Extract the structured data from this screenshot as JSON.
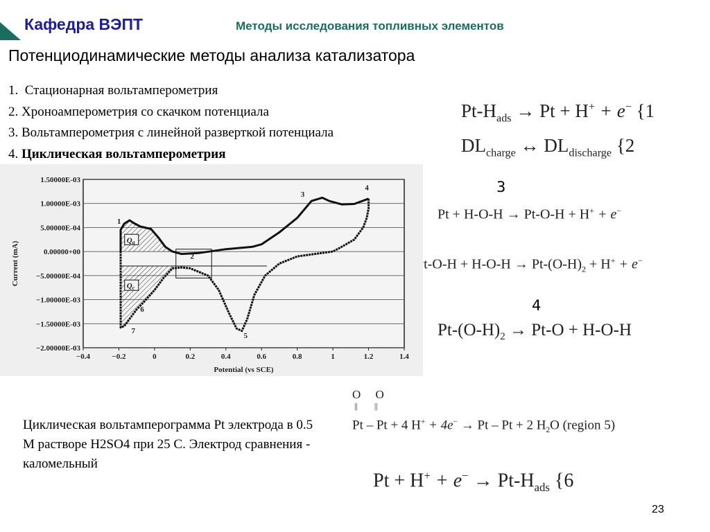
{
  "header": {
    "department": "Кафедра ВЭПТ",
    "course": "Методы исследования топливных элементов",
    "logo_color": "#1a6e60"
  },
  "slide": {
    "title": "Потенциодинамические методы анализа катализатора",
    "list": [
      {
        "num": "1.",
        "text": "Стационарная вольтамперометрия"
      },
      {
        "num": "2.",
        "text": "Хроноамперометрия со скачком потенциала"
      },
      {
        "num": "3.",
        "text": "Вольтамперометрия с линейной разверткой потенциала"
      },
      {
        "num": "4.",
        "text": "Циклическая вольтамперометрия"
      }
    ],
    "caption": "Циклическая вольтамперограмма Pt электрода в 0.5 М растворе H2SO4 при 25 С. Электрод сравнения - каломельный",
    "page_number": "23"
  },
  "equations": {
    "eq1": {
      "left": "Pt-H",
      "sub": "ads",
      "right": " → Pt + H",
      "sup": "+",
      "tail": " + e",
      "sup2": "−",
      "ref": " {1"
    },
    "eq2": {
      "a": "DL",
      "a_sub": "charge",
      "arrow": " ↔ ",
      "b": "DL",
      "b_sub": "discharge",
      "ref": " {2"
    },
    "label3": "3",
    "eq3a": {
      "text": "Pt + H-O-H → Pt-O-H + H",
      "sup": "+",
      "tail": " + e",
      "sup2": "−"
    },
    "eq3b": {
      "text": "Pt-O-H + H-O-H → Pt-(O-H)",
      "sub": "2",
      "tail": " + H",
      "sup": "+",
      "tail2": " + e",
      "sup2": "−"
    },
    "label4": "4",
    "eq4": {
      "text": "Pt-(O-H)",
      "sub": "2",
      "tail": " → Pt-O + H-O-H"
    },
    "eq5": {
      "oxygen": "O",
      "double_bond": "||",
      "text": "Pt – Pt + 4 H",
      "sup": "+",
      "mid": " + 4e",
      "sup2": "−",
      "tail": " → Pt – Pt + 2 H",
      "sub": "2",
      "tail2": "O (region 5)"
    },
    "eq6": {
      "text": "Pt + H",
      "sup": "+",
      "mid": " + e",
      "sup2": "−",
      "tail": " → Pt-H",
      "sub": "ads",
      "ref": " {6"
    }
  },
  "chart_data": {
    "type": "line",
    "xlabel": "Potential (vs SCE)",
    "ylabel": "Current (mA)",
    "xlim": [
      -0.4,
      1.4
    ],
    "ylim": [
      -0.002,
      0.0015
    ],
    "x_ticks": [
      "−0.4",
      "−0.2",
      "0",
      "0.2",
      "0.4",
      "0.6",
      "0.8",
      "1",
      "1.2",
      "1.4"
    ],
    "y_ticks": [
      "1.50000E-03",
      "1.00000E-03",
      "5.00000E-04",
      "0.00000+00",
      "−5.00000E-04",
      "−1.00000E-03",
      "−1.50000E-03",
      "−2.00000E-03"
    ],
    "grid": "horizontal",
    "anodic": {
      "x": [
        -0.19,
        -0.19,
        -0.17,
        -0.14,
        -0.12,
        -0.08,
        -0.02,
        0.02,
        0.06,
        0.1,
        0.15,
        0.25,
        0.4,
        0.55,
        0.6,
        0.7,
        0.8,
        0.88,
        0.94,
        0.98,
        1.05,
        1.12,
        1.2
      ],
      "y": [
        0,
        0.00045,
        0.00058,
        0.00065,
        0.0006,
        0.00052,
        0.00047,
        0.0003,
        0.0001,
        0.0,
        -5e-05,
        -3e-05,
        5e-05,
        0.0001,
        0.00015,
        0.0004,
        0.0007,
        0.00105,
        0.00112,
        0.00105,
        0.00098,
        0.00099,
        0.0011
      ]
    },
    "cathodic": {
      "x": [
        1.2,
        1.2,
        1.19,
        1.17,
        1.12,
        1.05,
        1.0,
        0.9,
        0.8,
        0.7,
        0.62,
        0.56,
        0.52,
        0.49,
        0.46,
        0.42,
        0.36,
        0.3,
        0.2,
        0.15,
        0.1,
        0.05,
        0.0,
        -0.06,
        -0.1,
        -0.14,
        -0.17,
        -0.19,
        -0.19,
        -0.19
      ],
      "y": [
        0.0011,
        0.0009,
        0.0007,
        0.0005,
        0.00025,
        0.0001,
        0.0,
        -5e-05,
        -0.0001,
        -0.00025,
        -0.0005,
        -0.0009,
        -0.0014,
        -0.00165,
        -0.0016,
        -0.0013,
        -0.0008,
        -0.0005,
        -0.00035,
        -0.00033,
        -0.00035,
        -0.00055,
        -0.0008,
        -0.00105,
        -0.0012,
        -0.0014,
        -0.00155,
        -0.00158,
        -0.0004,
        0.0
      ]
    },
    "baseline_current": -0.0003,
    "inset_box": {
      "x": [
        0.12,
        0.32
      ],
      "y": [
        -0.00055,
        5e-05
      ]
    },
    "region_labels": [
      {
        "text": "1",
        "x": -0.21,
        "y": 0.00058
      },
      {
        "text": "2",
        "x": 0.2,
        "y": -0.00015
      },
      {
        "text": "3",
        "x": 0.82,
        "y": 0.00114
      },
      {
        "text": "4",
        "x": 1.18,
        "y": 0.00128
      },
      {
        "text": "5",
        "x": 0.5,
        "y": -0.0018
      },
      {
        "text": "6",
        "x": -0.08,
        "y": -0.00125
      },
      {
        "text": "7",
        "x": -0.13,
        "y": -0.0017
      }
    ],
    "charge_labels": [
      {
        "text": "Q",
        "sub": "a",
        "x": -0.16,
        "y": 0.0002
      },
      {
        "text": "Q",
        "sub": "c",
        "x": -0.16,
        "y": -0.00075
      }
    ]
  }
}
